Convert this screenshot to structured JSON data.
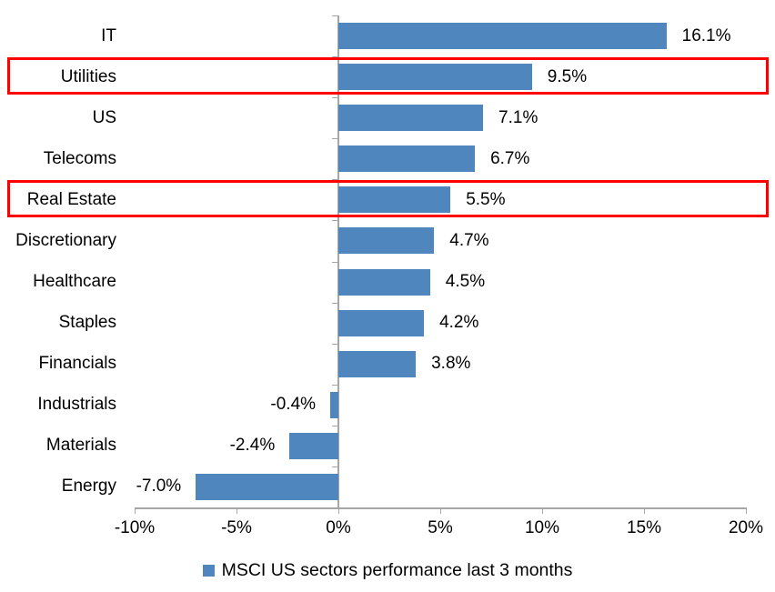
{
  "chart_data": {
    "type": "bar",
    "orientation": "horizontal",
    "title": "",
    "xlabel": "",
    "ylabel": "",
    "categories": [
      "IT",
      "Utilities",
      "US",
      "Telecoms",
      "Real Estate",
      "Discretionary",
      "Healthcare",
      "Staples",
      "Financials",
      "Industrials",
      "Materials",
      "Energy"
    ],
    "values": [
      16.1,
      9.5,
      7.1,
      6.7,
      5.5,
      4.7,
      4.5,
      4.2,
      3.8,
      -0.4,
      -2.4,
      -7.0
    ],
    "value_labels": [
      "16.1%",
      "9.5%",
      "7.1%",
      "6.7%",
      "5.5%",
      "4.7%",
      "4.5%",
      "4.2%",
      "3.8%",
      "-0.4%",
      "-2.4%",
      "-7.0%"
    ],
    "xlim": [
      -10,
      20
    ],
    "x_ticks": [
      {
        "label": "-10%",
        "value": -10
      },
      {
        "label": "-5%",
        "value": -5
      },
      {
        "label": "0%",
        "value": 0
      },
      {
        "label": "5%",
        "value": 5
      },
      {
        "label": "10%",
        "value": 10
      },
      {
        "label": "15%",
        "value": 15
      },
      {
        "label": "20%",
        "value": 20
      }
    ],
    "grid": false,
    "legend": "MSCI US sectors performance last 3 months",
    "legend_position": "bottom-center",
    "highlighted_categories": [
      "Utilities",
      "Real Estate"
    ],
    "colors": {
      "bar": "#4E86BD",
      "legend_marker": "#4E86BD",
      "highlight_box": "#FF0000",
      "axis": "#A6A6A6",
      "text": "#000000"
    }
  }
}
